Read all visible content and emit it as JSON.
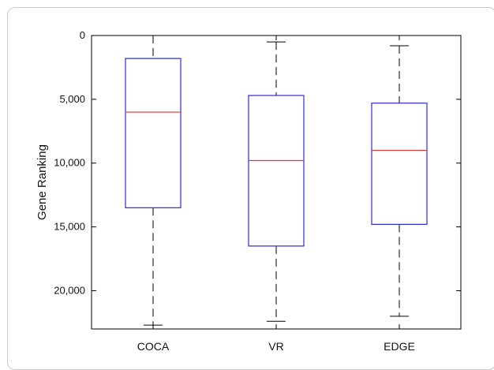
{
  "chart_data": {
    "type": "boxplot",
    "title": "",
    "xlabel": "",
    "ylabel": "Gene Ranking",
    "y_inverted": true,
    "ylim": [
      0,
      23000
    ],
    "yticks": [
      0,
      5000,
      10000,
      15000,
      20000
    ],
    "ytick_labels": [
      "0",
      "5,000",
      "10,000",
      "15,000",
      "20,000"
    ],
    "grid": false,
    "categories": [
      "COCA",
      "VR",
      "EDGE"
    ],
    "boxes": [
      {
        "category": "COCA",
        "whisker_low": 0,
        "q1": 1800,
        "median": 6000,
        "q3": 13500,
        "whisker_high": 22700
      },
      {
        "category": "VR",
        "whisker_low": 500,
        "q1": 4700,
        "median": 9800,
        "q3": 16500,
        "whisker_high": 22400
      },
      {
        "category": "EDGE",
        "whisker_low": 800,
        "q1": 5300,
        "median": 9000,
        "q3": 14800,
        "whisker_high": 22000
      }
    ],
    "colors": {
      "box": "#2b2bd6",
      "median": "#e23434",
      "whisker": "#000000",
      "axes": "#000000"
    }
  }
}
